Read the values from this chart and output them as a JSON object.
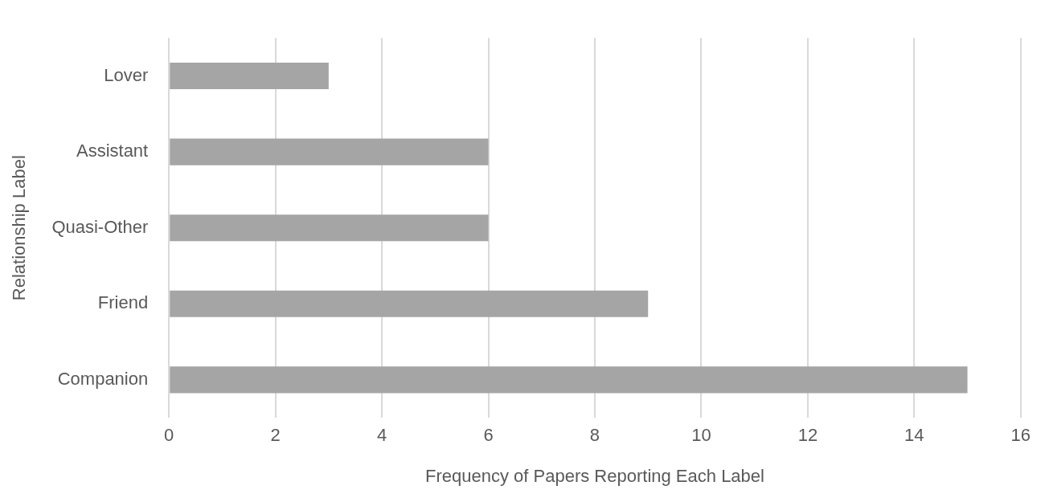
{
  "chart_data": {
    "type": "bar",
    "orientation": "horizontal",
    "xlabel": "Frequency of Papers Reporting Each Label",
    "ylabel": "Relationship Label",
    "categories": [
      "Lover",
      "Assistant",
      "Quasi-Other",
      "Friend",
      "Companion"
    ],
    "values": [
      3,
      6,
      6,
      9,
      15
    ],
    "color": "#a5a5a5",
    "xlim": [
      0,
      16
    ],
    "xticks": [
      0,
      2,
      4,
      6,
      8,
      10,
      12,
      14,
      16
    ],
    "grid": "x",
    "legend": false
  }
}
